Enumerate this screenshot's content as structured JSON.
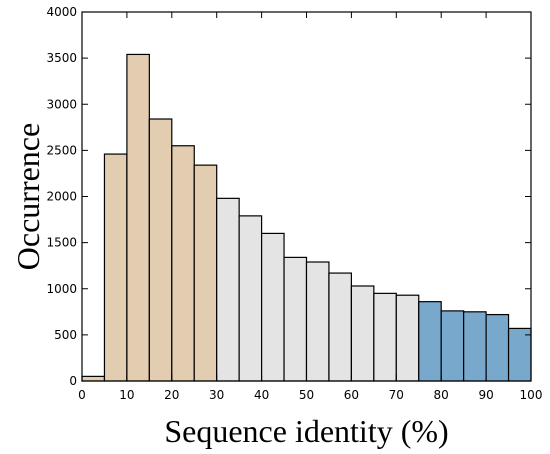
{
  "chart_data": {
    "type": "bar",
    "xlabel": "Sequence identity (%)",
    "ylabel": "Occurrence",
    "xlim": [
      0,
      100
    ],
    "ylim": [
      0,
      4000
    ],
    "xticks": [
      0,
      10,
      20,
      30,
      40,
      50,
      60,
      70,
      80,
      90,
      100
    ],
    "yticks": [
      0,
      500,
      1000,
      1500,
      2000,
      2500,
      3000,
      3500,
      4000
    ],
    "bin_width": 5,
    "bins": [
      {
        "start": 0,
        "value": 50,
        "color": "#e3cdb0"
      },
      {
        "start": 5,
        "value": 2460,
        "color": "#e3cdb0"
      },
      {
        "start": 10,
        "value": 3540,
        "color": "#e3cdb0"
      },
      {
        "start": 15,
        "value": 2840,
        "color": "#e3cdb0"
      },
      {
        "start": 20,
        "value": 2550,
        "color": "#e3cdb0"
      },
      {
        "start": 25,
        "value": 2340,
        "color": "#e3cdb0"
      },
      {
        "start": 30,
        "value": 1980,
        "color": "#e4e4e4"
      },
      {
        "start": 35,
        "value": 1790,
        "color": "#e4e4e4"
      },
      {
        "start": 40,
        "value": 1600,
        "color": "#e4e4e4"
      },
      {
        "start": 45,
        "value": 1340,
        "color": "#e4e4e4"
      },
      {
        "start": 50,
        "value": 1290,
        "color": "#e4e4e4"
      },
      {
        "start": 55,
        "value": 1170,
        "color": "#e4e4e4"
      },
      {
        "start": 60,
        "value": 1030,
        "color": "#e4e4e4"
      },
      {
        "start": 65,
        "value": 950,
        "color": "#e4e4e4"
      },
      {
        "start": 70,
        "value": 930,
        "color": "#e4e4e4"
      },
      {
        "start": 75,
        "value": 860,
        "color": "#79a8cd"
      },
      {
        "start": 80,
        "value": 760,
        "color": "#79a8cd"
      },
      {
        "start": 85,
        "value": 750,
        "color": "#79a8cd"
      },
      {
        "start": 90,
        "value": 720,
        "color": "#79a8cd"
      },
      {
        "start": 95,
        "value": 570,
        "color": "#79a8cd"
      }
    ]
  }
}
